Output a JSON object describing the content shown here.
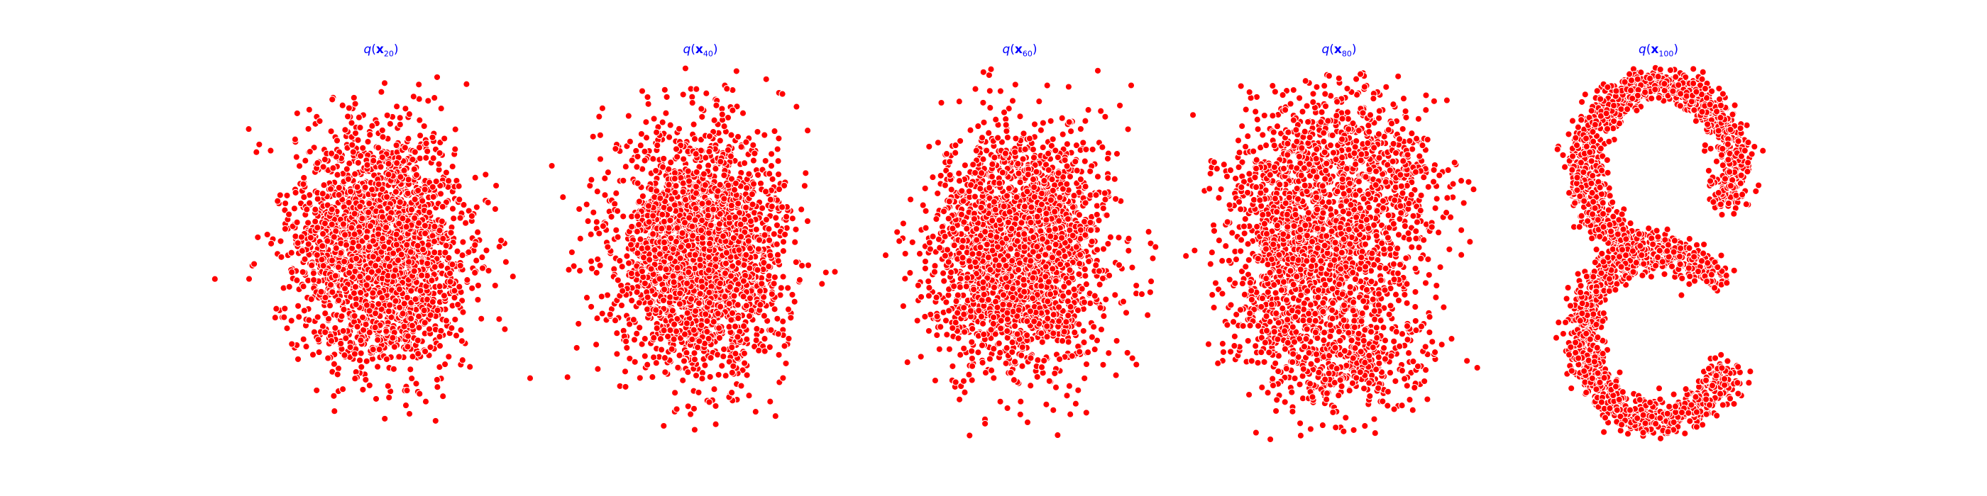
{
  "chart_data": [
    {
      "type": "scatter",
      "title_func": "q",
      "title_var": "x",
      "title_sub": "20",
      "shape": "gaussian",
      "n_points": 2500,
      "color": "#ff0000",
      "edge_color": "#ffffff",
      "axes": "off"
    },
    {
      "type": "scatter",
      "title_func": "q",
      "title_var": "x",
      "title_sub": "40",
      "shape": "gaussian",
      "n_points": 2500,
      "color": "#ff0000",
      "edge_color": "#ffffff",
      "axes": "off"
    },
    {
      "type": "scatter",
      "title_func": "q",
      "title_var": "x",
      "title_sub": "60",
      "shape": "gaussian",
      "n_points": 2500,
      "color": "#ff0000",
      "edge_color": "#ffffff",
      "axes": "off"
    },
    {
      "type": "scatter",
      "title_func": "q",
      "title_var": "x",
      "title_sub": "80",
      "shape": "blurred-S",
      "n_points": 2500,
      "color": "#ff0000",
      "edge_color": "#ffffff",
      "axes": "off"
    },
    {
      "type": "scatter",
      "title_func": "q",
      "title_var": "x",
      "title_sub": "100",
      "shape": "S-curve",
      "n_points": 2500,
      "color": "#ff0000",
      "edge_color": "#ffffff",
      "axes": "off"
    }
  ]
}
